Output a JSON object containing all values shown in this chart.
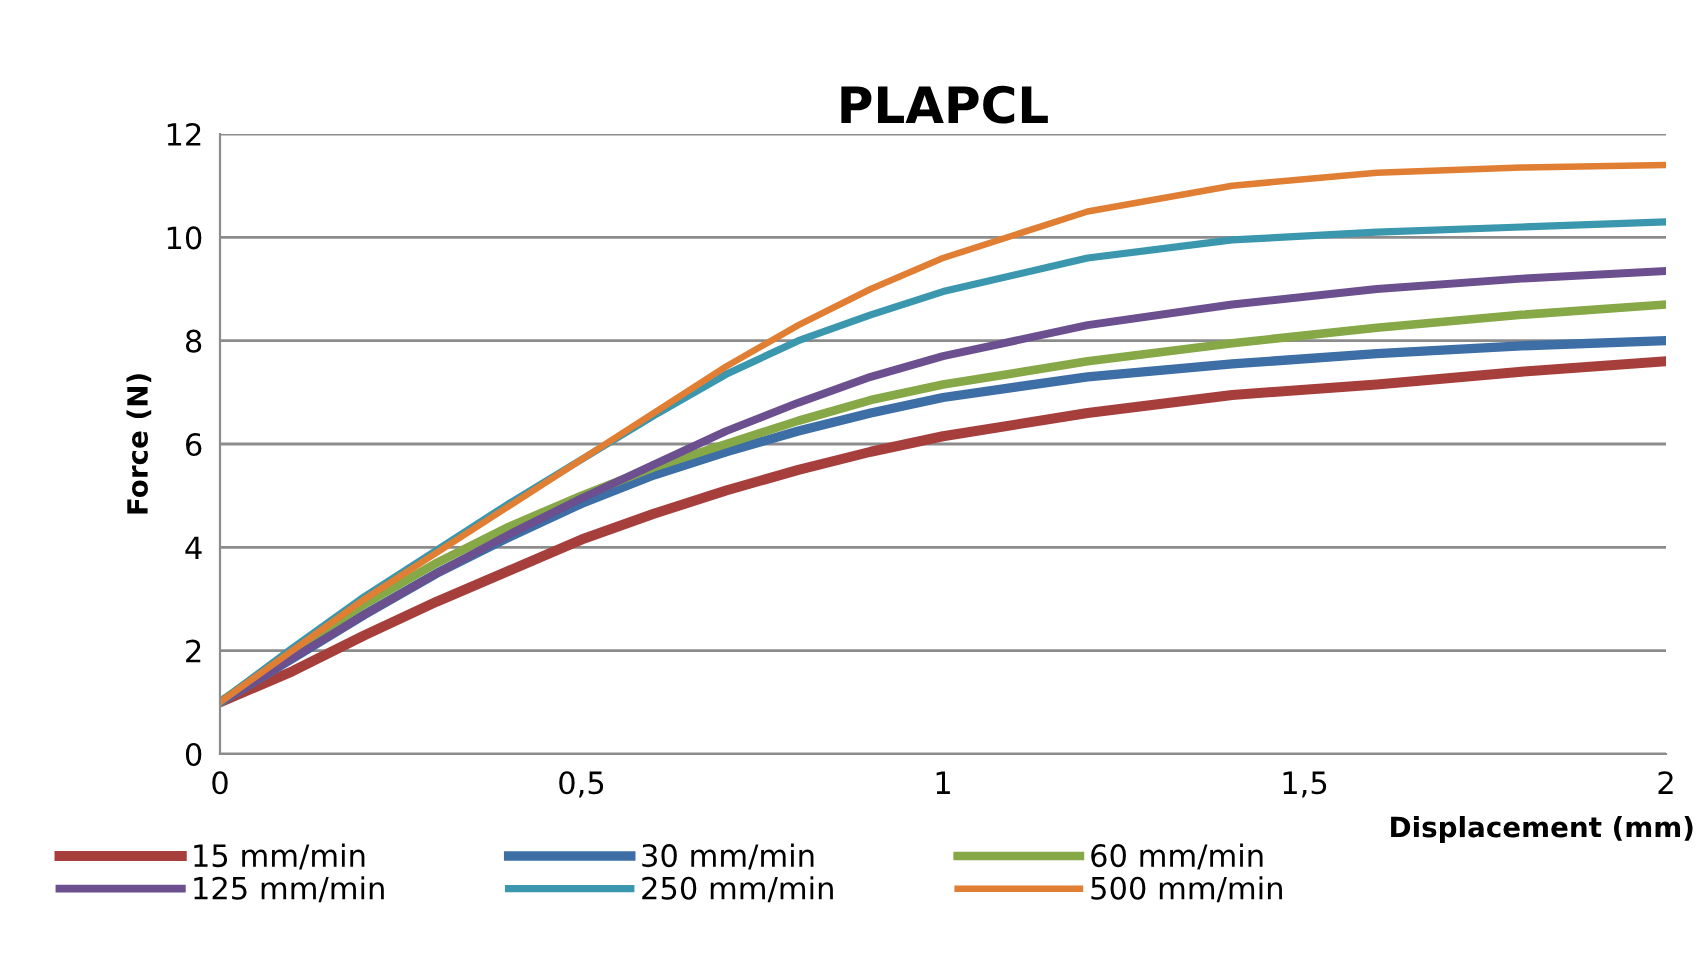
{
  "chart_data": {
    "type": "line",
    "title": "PLAPCL",
    "xlabel": "Displacement (mm)",
    "ylabel": "Force (N)",
    "x": [
      0,
      0.1,
      0.2,
      0.3,
      0.4,
      0.5,
      0.6,
      0.7,
      0.8,
      0.9,
      1.0,
      1.2,
      1.4,
      1.6,
      1.8,
      2.0
    ],
    "series": [
      {
        "name": "15 mm/min",
        "color": "#a63f3c",
        "values": [
          1.0,
          1.6,
          2.3,
          2.95,
          3.55,
          4.15,
          4.65,
          5.1,
          5.5,
          5.85,
          6.15,
          6.6,
          6.95,
          7.15,
          7.4,
          7.6
        ]
      },
      {
        "name": "30 mm/min",
        "color": "#3d6ea6",
        "values": [
          1.0,
          1.85,
          2.7,
          3.5,
          4.2,
          4.85,
          5.4,
          5.85,
          6.25,
          6.6,
          6.9,
          7.3,
          7.55,
          7.75,
          7.9,
          8.0
        ]
      },
      {
        "name": "60 mm/min",
        "color": "#86a847",
        "values": [
          1.0,
          2.0,
          2.9,
          3.7,
          4.4,
          5.0,
          5.55,
          6.0,
          6.45,
          6.85,
          7.15,
          7.6,
          7.95,
          8.25,
          8.5,
          8.7
        ]
      },
      {
        "name": "125 mm/min",
        "color": "#6b4f8f",
        "values": [
          1.0,
          1.85,
          2.7,
          3.5,
          4.25,
          4.95,
          5.6,
          6.25,
          6.8,
          7.3,
          7.7,
          8.3,
          8.7,
          9.0,
          9.2,
          9.35
        ]
      },
      {
        "name": "250 mm/min",
        "color": "#3a97ad",
        "values": [
          1.0,
          2.05,
          3.05,
          3.95,
          4.85,
          5.7,
          6.55,
          7.35,
          8.0,
          8.5,
          8.95,
          9.6,
          9.95,
          10.1,
          10.2,
          10.3
        ]
      },
      {
        "name": "500 mm/min",
        "color": "#e07f33",
        "values": [
          1.0,
          2.0,
          3.0,
          3.9,
          4.8,
          5.7,
          6.6,
          7.5,
          8.3,
          9.0,
          9.6,
          10.5,
          11.0,
          11.25,
          11.35,
          11.4
        ]
      }
    ],
    "xlim": [
      0,
      2
    ],
    "ylim": [
      0,
      12
    ],
    "xticks": [
      0,
      {
        "value": 0.5,
        "label": "0,5"
      },
      1,
      {
        "value": 1.5,
        "label": "1,5"
      },
      2
    ],
    "yticks": [
      0,
      2,
      4,
      6,
      8,
      10,
      12
    ],
    "grid": "y",
    "legend": "bottom",
    "marker": "none",
    "line_style": "solid"
  }
}
